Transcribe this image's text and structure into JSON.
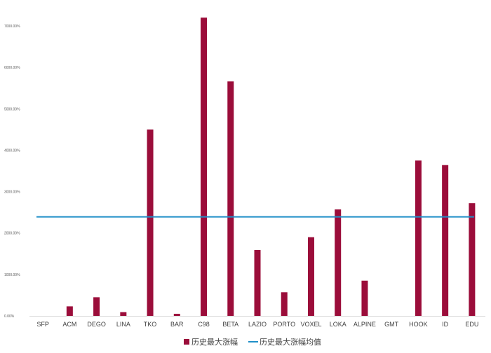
{
  "chart_data": {
    "type": "bar",
    "title": "",
    "xlabel": "",
    "ylabel": "",
    "categories": [
      "SFP",
      "ACM",
      "DEGO",
      "LINA",
      "TKO",
      "BAR",
      "C98",
      "BETA",
      "LAZIO",
      "PORTO",
      "VOXEL",
      "LOKA",
      "ALPINE",
      "GMT",
      "HOOK",
      "ID",
      "EDU"
    ],
    "series": [
      {
        "name": "历史最大涨幅",
        "type": "bar",
        "color": "#9b0d3a",
        "values": [
          0,
          230,
          450,
          90,
          4500,
          50,
          7200,
          5660,
          1590,
          570,
          1900,
          2570,
          850,
          0,
          3750,
          3640,
          2720
        ]
      },
      {
        "name": "历史最大涨幅均值",
        "type": "line",
        "color": "#1f8fc8",
        "value": 2390
      }
    ],
    "ylim": [
      0,
      7000
    ],
    "y_ticks": [
      "0.00%",
      "1000.00%",
      "2000.00%",
      "3000.00%",
      "4000.00%",
      "5000.00%",
      "6000.00%",
      "7000.00%"
    ],
    "grid": false,
    "legend_position": "bottom"
  }
}
